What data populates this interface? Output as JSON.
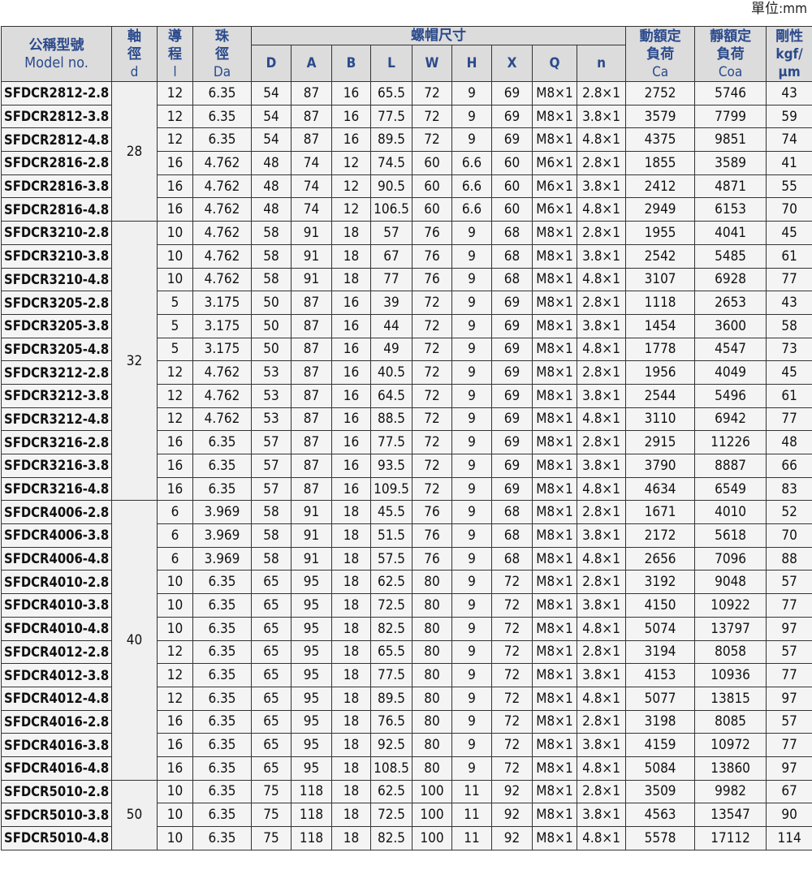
{
  "unit": "單位:mm",
  "header": {
    "model_zh": "公稱型號",
    "model_en": "Model no.",
    "d": [
      "軸",
      "徑",
      "d"
    ],
    "l": [
      "導",
      "程",
      "l"
    ],
    "da": [
      "珠",
      "徑",
      "Da"
    ],
    "nut": "螺帽尺寸",
    "nut_cols": [
      "D",
      "A",
      "B",
      "L",
      "W",
      "H",
      "X",
      "Q",
      "n"
    ],
    "ca": [
      "動額定",
      "負荷",
      "Ca"
    ],
    "coa": [
      "靜額定",
      "負荷",
      "Coa"
    ],
    "k": [
      "剛性",
      "kgf/",
      "μm"
    ]
  },
  "groups": [
    {
      "d": "28",
      "count": 6
    },
    {
      "d": "32",
      "count": 12
    },
    {
      "d": "40",
      "count": 12
    },
    {
      "d": "50",
      "count": 3
    }
  ],
  "rows": [
    [
      "SFDCR2812-2.8",
      "12",
      "6.35",
      "54",
      "87",
      "16",
      "65.5",
      "72",
      "9",
      "69",
      "M8×1",
      "2.8×1",
      "2752",
      "5746",
      "43"
    ],
    [
      "SFDCR2812-3.8",
      "12",
      "6.35",
      "54",
      "87",
      "16",
      "77.5",
      "72",
      "9",
      "69",
      "M8×1",
      "3.8×1",
      "3579",
      "7799",
      "59"
    ],
    [
      "SFDCR2812-4.8",
      "12",
      "6.35",
      "54",
      "87",
      "16",
      "89.5",
      "72",
      "9",
      "69",
      "M8×1",
      "4.8×1",
      "4375",
      "9851",
      "74"
    ],
    [
      "SFDCR2816-2.8",
      "16",
      "4.762",
      "48",
      "74",
      "12",
      "74.5",
      "60",
      "6.6",
      "60",
      "M6×1",
      "2.8×1",
      "1855",
      "3589",
      "41"
    ],
    [
      "SFDCR2816-3.8",
      "16",
      "4.762",
      "48",
      "74",
      "12",
      "90.5",
      "60",
      "6.6",
      "60",
      "M6×1",
      "3.8×1",
      "2412",
      "4871",
      "55"
    ],
    [
      "SFDCR2816-4.8",
      "16",
      "4.762",
      "48",
      "74",
      "12",
      "106.5",
      "60",
      "6.6",
      "60",
      "M6×1",
      "4.8×1",
      "2949",
      "6153",
      "70"
    ],
    [
      "SFDCR3210-2.8",
      "10",
      "4.762",
      "58",
      "91",
      "18",
      "57",
      "76",
      "9",
      "68",
      "M8×1",
      "2.8×1",
      "1955",
      "4041",
      "45"
    ],
    [
      "SFDCR3210-3.8",
      "10",
      "4.762",
      "58",
      "91",
      "18",
      "67",
      "76",
      "9",
      "68",
      "M8×1",
      "3.8×1",
      "2542",
      "5485",
      "61"
    ],
    [
      "SFDCR3210-4.8",
      "10",
      "4.762",
      "58",
      "91",
      "18",
      "77",
      "76",
      "9",
      "68",
      "M8×1",
      "4.8×1",
      "3107",
      "6928",
      "77"
    ],
    [
      "SFDCR3205-2.8",
      "5",
      "3.175",
      "50",
      "87",
      "16",
      "39",
      "72",
      "9",
      "69",
      "M8×1",
      "2.8×1",
      "1118",
      "2653",
      "43"
    ],
    [
      "SFDCR3205-3.8",
      "5",
      "3.175",
      "50",
      "87",
      "16",
      "44",
      "72",
      "9",
      "69",
      "M8×1",
      "3.8×1",
      "1454",
      "3600",
      "58"
    ],
    [
      "SFDCR3205-4.8",
      "5",
      "3.175",
      "50",
      "87",
      "16",
      "49",
      "72",
      "9",
      "69",
      "M8×1",
      "4.8×1",
      "1778",
      "4547",
      "73"
    ],
    [
      "SFDCR3212-2.8",
      "12",
      "4.762",
      "53",
      "87",
      "16",
      "40.5",
      "72",
      "9",
      "69",
      "M8×1",
      "2.8×1",
      "1956",
      "4049",
      "45"
    ],
    [
      "SFDCR3212-3.8",
      "12",
      "4.762",
      "53",
      "87",
      "16",
      "64.5",
      "72",
      "9",
      "69",
      "M8×1",
      "3.8×1",
      "2544",
      "5496",
      "61"
    ],
    [
      "SFDCR3212-4.8",
      "12",
      "4.762",
      "53",
      "87",
      "16",
      "88.5",
      "72",
      "9",
      "69",
      "M8×1",
      "4.8×1",
      "3110",
      "6942",
      "77"
    ],
    [
      "SFDCR3216-2.8",
      "16",
      "6.35",
      "57",
      "87",
      "16",
      "77.5",
      "72",
      "9",
      "69",
      "M8×1",
      "2.8×1",
      "2915",
      "11226",
      "48"
    ],
    [
      "SFDCR3216-3.8",
      "16",
      "6.35",
      "57",
      "87",
      "16",
      "93.5",
      "72",
      "9",
      "69",
      "M8×1",
      "3.8×1",
      "3790",
      "8887",
      "66"
    ],
    [
      "SFDCR3216-4.8",
      "16",
      "6.35",
      "57",
      "87",
      "16",
      "109.5",
      "72",
      "9",
      "69",
      "M8×1",
      "4.8×1",
      "4634",
      "6549",
      "83"
    ],
    [
      "SFDCR4006-2.8",
      "6",
      "3.969",
      "58",
      "91",
      "18",
      "45.5",
      "76",
      "9",
      "68",
      "M8×1",
      "2.8×1",
      "1671",
      "4010",
      "52"
    ],
    [
      "SFDCR4006-3.8",
      "6",
      "3.969",
      "58",
      "91",
      "18",
      "51.5",
      "76",
      "9",
      "68",
      "M8×1",
      "3.8×1",
      "2172",
      "5618",
      "70"
    ],
    [
      "SFDCR4006-4.8",
      "6",
      "3.969",
      "58",
      "91",
      "18",
      "57.5",
      "76",
      "9",
      "68",
      "M8×1",
      "4.8×1",
      "2656",
      "7096",
      "88"
    ],
    [
      "SFDCR4010-2.8",
      "10",
      "6.35",
      "65",
      "95",
      "18",
      "62.5",
      "80",
      "9",
      "72",
      "M8×1",
      "2.8×1",
      "3192",
      "9048",
      "57"
    ],
    [
      "SFDCR4010-3.8",
      "10",
      "6.35",
      "65",
      "95",
      "18",
      "72.5",
      "80",
      "9",
      "72",
      "M8×1",
      "3.8×1",
      "4150",
      "10922",
      "77"
    ],
    [
      "SFDCR4010-4.8",
      "10",
      "6.35",
      "65",
      "95",
      "18",
      "82.5",
      "80",
      "9",
      "72",
      "M8×1",
      "4.8×1",
      "5074",
      "13797",
      "97"
    ],
    [
      "SFDCR4012-2.8",
      "12",
      "6.35",
      "65",
      "95",
      "18",
      "65.5",
      "80",
      "9",
      "72",
      "M8×1",
      "2.8×1",
      "3194",
      "8058",
      "57"
    ],
    [
      "SFDCR4012-3.8",
      "12",
      "6.35",
      "65",
      "95",
      "18",
      "77.5",
      "80",
      "9",
      "72",
      "M8×1",
      "3.8×1",
      "4153",
      "10936",
      "77"
    ],
    [
      "SFDCR4012-4.8",
      "12",
      "6.35",
      "65",
      "95",
      "18",
      "89.5",
      "80",
      "9",
      "72",
      "M8×1",
      "4.8×1",
      "5077",
      "13815",
      "97"
    ],
    [
      "SFDCR4016-2.8",
      "16",
      "6.35",
      "65",
      "95",
      "18",
      "76.5",
      "80",
      "9",
      "72",
      "M8×1",
      "2.8×1",
      "3198",
      "8085",
      "57"
    ],
    [
      "SFDCR4016-3.8",
      "16",
      "6.35",
      "65",
      "95",
      "18",
      "92.5",
      "80",
      "9",
      "72",
      "M8×1",
      "3.8×1",
      "4159",
      "10972",
      "77"
    ],
    [
      "SFDCR4016-4.8",
      "16",
      "6.35",
      "65",
      "95",
      "18",
      "108.5",
      "80",
      "9",
      "72",
      "M8×1",
      "4.8×1",
      "5084",
      "13860",
      "97"
    ],
    [
      "SFDCR5010-2.8",
      "10",
      "6.35",
      "75",
      "118",
      "18",
      "62.5",
      "100",
      "11",
      "92",
      "M8×1",
      "2.8×1",
      "3509",
      "9982",
      "67"
    ],
    [
      "SFDCR5010-3.8",
      "10",
      "6.35",
      "75",
      "118",
      "18",
      "72.5",
      "100",
      "11",
      "92",
      "M8×1",
      "3.8×1",
      "4563",
      "13547",
      "90"
    ],
    [
      "SFDCR5010-4.8",
      "10",
      "6.35",
      "75",
      "118",
      "18",
      "82.5",
      "100",
      "11",
      "92",
      "M8×1",
      "4.8×1",
      "5578",
      "17112",
      "114"
    ]
  ],
  "colors": {
    "header_bg": "#dcdcdc",
    "header_text": "#2b4a8c",
    "border": "#333333"
  }
}
